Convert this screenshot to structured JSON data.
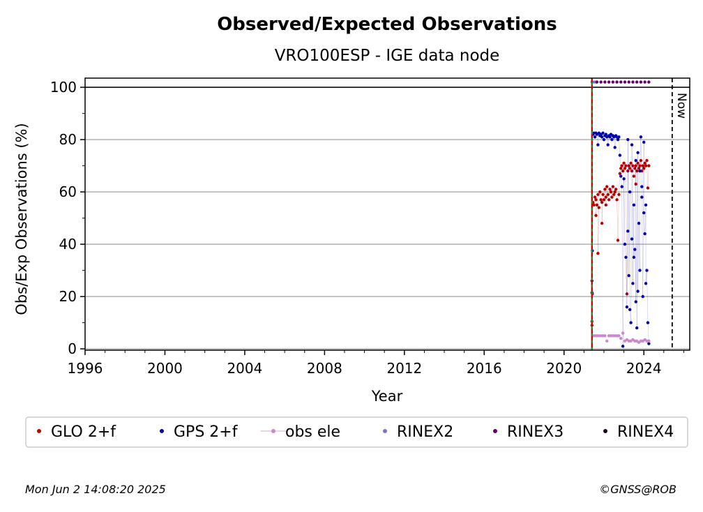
{
  "chart_data": {
    "type": "scatter",
    "title": "Observed/Expected Observations",
    "subtitle": "VRO100ESP - IGE data node",
    "xlabel": "Year",
    "ylabel": "Obs/Exp Observations (%)",
    "xlim": [
      1996,
      2026.3
    ],
    "ylim": [
      -0.5,
      103.5
    ],
    "x_ticks": [
      1996,
      2000,
      2004,
      2008,
      2012,
      2016,
      2020,
      2024
    ],
    "y_ticks": [
      0,
      20,
      40,
      60,
      80,
      100
    ],
    "grid": "horizontal",
    "legend_position": "bottom",
    "reference_lines": [
      {
        "type": "horizontal",
        "y": 100,
        "style": "solid",
        "color": "#000000"
      },
      {
        "type": "vertical",
        "x": 2021.4,
        "style": "solid",
        "color": "#2a8a2a"
      },
      {
        "type": "vertical",
        "x": 2021.4,
        "style": "dashed",
        "color": "#cc0000"
      },
      {
        "type": "vertical",
        "x": 2025.42,
        "style": "dashed",
        "color": "#000000",
        "label": "Now"
      }
    ],
    "series": [
      {
        "name": "GLO 2+f",
        "color": "#bb0000",
        "points": [
          [
            2021.4,
            9
          ],
          [
            2021.4,
            10.5
          ],
          [
            2021.42,
            21
          ],
          [
            2021.45,
            56
          ],
          [
            2021.5,
            55
          ],
          [
            2021.55,
            58
          ],
          [
            2021.6,
            57
          ],
          [
            2021.65,
            55
          ],
          [
            2021.7,
            59
          ],
          [
            2021.75,
            54
          ],
          [
            2021.8,
            60
          ],
          [
            2021.85,
            57
          ],
          [
            2021.9,
            56
          ],
          [
            2021.95,
            59
          ],
          [
            2022.0,
            57
          ],
          [
            2022.05,
            61
          ],
          [
            2022.1,
            58
          ],
          [
            2022.15,
            62
          ],
          [
            2022.2,
            59
          ],
          [
            2022.25,
            57
          ],
          [
            2022.3,
            61
          ],
          [
            2022.35,
            60
          ],
          [
            2022.4,
            58
          ],
          [
            2022.45,
            62
          ],
          [
            2022.5,
            59
          ],
          [
            2022.55,
            60
          ],
          [
            2022.6,
            61
          ],
          [
            2022.65,
            57
          ],
          [
            2022.7,
            41.5
          ],
          [
            2022.75,
            59
          ],
          [
            2022.8,
            67
          ],
          [
            2022.85,
            69
          ],
          [
            2022.9,
            70
          ],
          [
            2022.95,
            68
          ],
          [
            2023.0,
            71
          ],
          [
            2023.05,
            69
          ],
          [
            2023.1,
            70
          ],
          [
            2023.15,
            21
          ],
          [
            2023.2,
            68
          ],
          [
            2023.25,
            70
          ],
          [
            2023.3,
            69
          ],
          [
            2023.35,
            71
          ],
          [
            2023.4,
            68
          ],
          [
            2023.45,
            70
          ],
          [
            2023.5,
            66
          ],
          [
            2023.55,
            69
          ],
          [
            2023.6,
            70
          ],
          [
            2023.65,
            68
          ],
          [
            2023.7,
            71
          ],
          [
            2023.75,
            69
          ],
          [
            2023.8,
            70
          ],
          [
            2023.85,
            72
          ],
          [
            2023.9,
            68
          ],
          [
            2023.95,
            70
          ],
          [
            2024.0,
            69
          ],
          [
            2024.05,
            71
          ],
          [
            2024.1,
            70
          ],
          [
            2024.15,
            72
          ],
          [
            2024.2,
            61.5
          ],
          [
            2024.25,
            70
          ],
          [
            2021.6,
            51
          ],
          [
            2021.9,
            48
          ],
          [
            2021.7,
            36.5
          ],
          [
            2022.1,
            55
          ],
          [
            2023.6,
            63
          ]
        ]
      },
      {
        "name": "GPS 2+f",
        "color": "#0000aa",
        "points": [
          [
            2021.4,
            26
          ],
          [
            2021.4,
            21.5
          ],
          [
            2021.42,
            37.5
          ],
          [
            2021.45,
            82
          ],
          [
            2021.5,
            82.5
          ],
          [
            2021.55,
            81
          ],
          [
            2021.6,
            82.5
          ],
          [
            2021.65,
            82
          ],
          [
            2021.7,
            78
          ],
          [
            2021.75,
            82.5
          ],
          [
            2021.8,
            81.5
          ],
          [
            2021.85,
            82
          ],
          [
            2021.9,
            81
          ],
          [
            2021.95,
            82.5
          ],
          [
            2022.0,
            80
          ],
          [
            2022.05,
            81.5
          ],
          [
            2022.1,
            82
          ],
          [
            2022.15,
            81
          ],
          [
            2022.2,
            78
          ],
          [
            2022.25,
            81.5
          ],
          [
            2022.3,
            81
          ],
          [
            2022.35,
            82
          ],
          [
            2022.4,
            80
          ],
          [
            2022.45,
            81.5
          ],
          [
            2022.5,
            81
          ],
          [
            2022.55,
            77
          ],
          [
            2022.6,
            81.5
          ],
          [
            2022.65,
            81
          ],
          [
            2022.7,
            80
          ],
          [
            2022.75,
            81
          ],
          [
            2022.8,
            74
          ],
          [
            2022.85,
            66
          ],
          [
            2022.9,
            62
          ],
          [
            2022.95,
            1
          ],
          [
            2023.0,
            65
          ],
          [
            2023.05,
            40
          ],
          [
            2023.1,
            35
          ],
          [
            2023.15,
            16
          ],
          [
            2023.2,
            45
          ],
          [
            2023.25,
            28
          ],
          [
            2023.3,
            60
          ],
          [
            2023.35,
            10
          ],
          [
            2023.4,
            42
          ],
          [
            2023.45,
            25
          ],
          [
            2023.5,
            55
          ],
          [
            2023.55,
            38
          ],
          [
            2023.6,
            18
          ],
          [
            2023.65,
            8
          ],
          [
            2023.7,
            75
          ],
          [
            2023.75,
            48
          ],
          [
            2023.8,
            30
          ],
          [
            2023.85,
            81
          ],
          [
            2023.9,
            62
          ],
          [
            2023.95,
            20
          ],
          [
            2024.0,
            79
          ],
          [
            2024.05,
            44
          ],
          [
            2024.1,
            55
          ],
          [
            2024.15,
            30
          ],
          [
            2024.2,
            10
          ],
          [
            2024.25,
            2
          ],
          [
            2023.2,
            80
          ],
          [
            2023.4,
            78
          ],
          [
            2023.6,
            72
          ],
          [
            2023.8,
            68
          ],
          [
            2024.0,
            52
          ],
          [
            2023.3,
            15
          ],
          [
            2023.5,
            35
          ],
          [
            2023.7,
            22
          ],
          [
            2023.9,
            58
          ],
          [
            2024.1,
            25
          ]
        ]
      },
      {
        "name": "obs ele",
        "color": "#cc88cc",
        "points": [
          [
            2021.45,
            5
          ],
          [
            2021.55,
            5
          ],
          [
            2021.65,
            5
          ],
          [
            2021.75,
            5
          ],
          [
            2021.85,
            5
          ],
          [
            2021.95,
            5
          ],
          [
            2022.05,
            5
          ],
          [
            2022.15,
            3
          ],
          [
            2022.25,
            5
          ],
          [
            2022.35,
            5
          ],
          [
            2022.45,
            5
          ],
          [
            2022.55,
            5
          ],
          [
            2022.65,
            5
          ],
          [
            2022.75,
            5
          ],
          [
            2022.85,
            4
          ],
          [
            2022.95,
            6
          ],
          [
            2023.05,
            3
          ],
          [
            2023.15,
            3.5
          ],
          [
            2023.25,
            3
          ],
          [
            2023.35,
            3
          ],
          [
            2023.45,
            3.5
          ],
          [
            2023.55,
            3
          ],
          [
            2023.65,
            3
          ],
          [
            2023.75,
            2.5
          ],
          [
            2023.85,
            3
          ],
          [
            2023.95,
            3
          ],
          [
            2024.05,
            3.5
          ],
          [
            2024.15,
            3
          ],
          [
            2024.25,
            3
          ]
        ]
      },
      {
        "name": "RINEX2",
        "color": "#7777bb",
        "points": [
          [
            2021.4,
            102
          ],
          [
            2021.5,
            102
          ],
          [
            2021.6,
            102
          ]
        ]
      },
      {
        "name": "RINEX3",
        "color": "#660066",
        "points": [
          [
            2021.65,
            102
          ],
          [
            2021.85,
            102
          ],
          [
            2022.05,
            102
          ],
          [
            2022.25,
            102
          ],
          [
            2022.45,
            102
          ],
          [
            2022.65,
            102
          ],
          [
            2022.85,
            102
          ],
          [
            2023.05,
            102
          ],
          [
            2023.25,
            102
          ],
          [
            2023.45,
            102
          ],
          [
            2023.65,
            102
          ],
          [
            2023.85,
            102
          ],
          [
            2024.05,
            102
          ],
          [
            2024.25,
            102
          ]
        ]
      },
      {
        "name": "RINEX4",
        "color": "#220022",
        "points": []
      }
    ]
  },
  "footer": {
    "timestamp": "Mon Jun  2 14:08:20 2025",
    "credit": "©GNSS@ROB"
  }
}
